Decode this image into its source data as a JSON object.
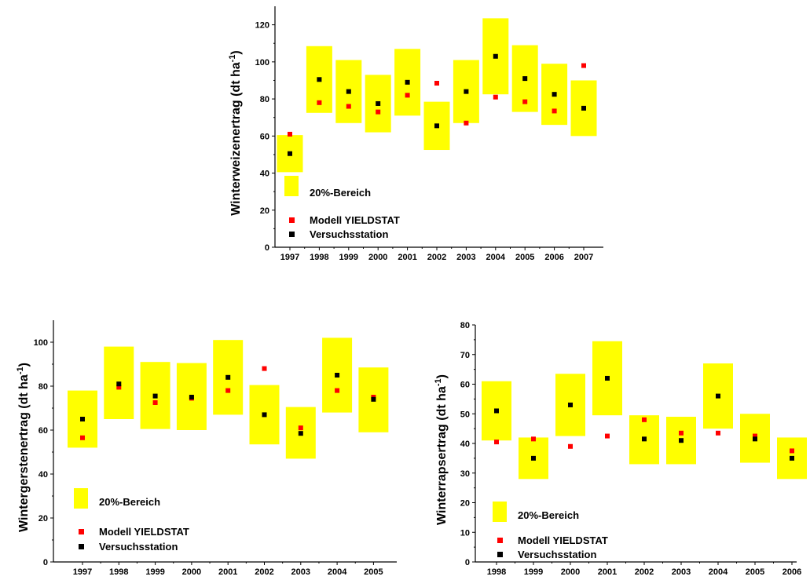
{
  "chart_data": [
    {
      "type": "scatter",
      "ylabel": "Winterweizenertrag (dt ha-1)",
      "ylabel_text": "Winterweizenertrag (dt ha",
      "ylabel_sup": "-1",
      "ylabel_close": ")",
      "ylim": [
        0,
        130
      ],
      "yticks": [
        0,
        20,
        40,
        60,
        80,
        100,
        120
      ],
      "categories": [
        "1997",
        "1998",
        "1999",
        "2000",
        "2001",
        "2002",
        "2003",
        "2004",
        "2005",
        "2006",
        "2007"
      ],
      "legend": [
        "20%-Bereich",
        "Modell YIELDSTAT",
        "Versuchsstation"
      ],
      "series": [
        {
          "name": "Versuchsstation",
          "color": "#000000",
          "values": [
            50.5,
            90.5,
            84,
            77.5,
            89,
            65.5,
            84,
            103,
            91,
            82.5,
            75
          ]
        },
        {
          "name": "Modell YIELDSTAT",
          "color": "#ff0000",
          "values": [
            61,
            78,
            76,
            73,
            82,
            88.5,
            67,
            81,
            78.5,
            73.5,
            98
          ]
        }
      ],
      "bands": [
        [
          40.5,
          60.5
        ],
        [
          72.5,
          108.5
        ],
        [
          67,
          101
        ],
        [
          62,
          93
        ],
        [
          71,
          107
        ],
        [
          52.5,
          78.5
        ],
        [
          67,
          101
        ],
        [
          82.5,
          123.5
        ],
        [
          73,
          109
        ],
        [
          66,
          99
        ],
        [
          60,
          90
        ]
      ],
      "band_color": "#ffff00"
    },
    {
      "type": "scatter",
      "ylabel": "Wintergerstenertrag (dt ha-1)",
      "ylabel_text": "Wintergerstenertrag (dt ha",
      "ylabel_sup": "-1",
      "ylabel_close": ")",
      "ylim": [
        0,
        110
      ],
      "yticks": [
        0,
        20,
        40,
        60,
        80,
        100
      ],
      "categories": [
        "1997",
        "1998",
        "1999",
        "2000",
        "2001",
        "2002",
        "2003",
        "2004",
        "2005"
      ],
      "legend": [
        "20%-Bereich",
        "Modell YIELDSTAT",
        "Versuchsstation"
      ],
      "series": [
        {
          "name": "Versuchsstation",
          "color": "#000000",
          "values": [
            65,
            81,
            75.5,
            75,
            84,
            67,
            58.5,
            85,
            74
          ]
        },
        {
          "name": "Modell YIELDSTAT",
          "color": "#ff0000",
          "values": [
            56.5,
            79.5,
            72.5,
            74.5,
            78,
            88,
            61,
            78,
            75
          ]
        }
      ],
      "bands": [
        [
          52,
          78
        ],
        [
          65,
          98
        ],
        [
          60.5,
          91
        ],
        [
          60,
          90.5
        ],
        [
          67,
          101
        ],
        [
          53.5,
          80.5
        ],
        [
          47,
          70.5
        ],
        [
          68,
          102
        ],
        [
          59,
          88.5
        ]
      ],
      "band_color": "#ffff00"
    },
    {
      "type": "scatter",
      "ylabel": "Winterrapsertrag (dt ha-1)",
      "ylabel_text": "Winterrapsertrag (dt ha",
      "ylabel_sup": "-1",
      "ylabel_close": ")",
      "ylim": [
        0,
        80
      ],
      "yticks": [
        0,
        10,
        20,
        30,
        40,
        50,
        60,
        70,
        80
      ],
      "categories": [
        "1998",
        "1999",
        "2000",
        "2001",
        "2002",
        "2003",
        "2004",
        "2005",
        "2006"
      ],
      "legend": [
        "20%-Bereich",
        "Modell YIELDSTAT",
        "Versuchsstation"
      ],
      "series": [
        {
          "name": "Versuchsstation",
          "color": "#000000",
          "values": [
            51,
            35,
            53,
            62,
            41.5,
            41,
            56,
            41.5,
            35
          ]
        },
        {
          "name": "Modell YIELDSTAT",
          "color": "#ff0000",
          "values": [
            40.5,
            41.5,
            39,
            42.5,
            48,
            43.5,
            43.5,
            42.5,
            37.5
          ]
        }
      ],
      "bands": [
        [
          41,
          61
        ],
        [
          28,
          42
        ],
        [
          42.5,
          63.5
        ],
        [
          49.5,
          74.5
        ],
        [
          33,
          49.5
        ],
        [
          33,
          49
        ],
        [
          45,
          67
        ],
        [
          33.5,
          50
        ],
        [
          28,
          42
        ]
      ],
      "band_color": "#ffff00"
    }
  ]
}
